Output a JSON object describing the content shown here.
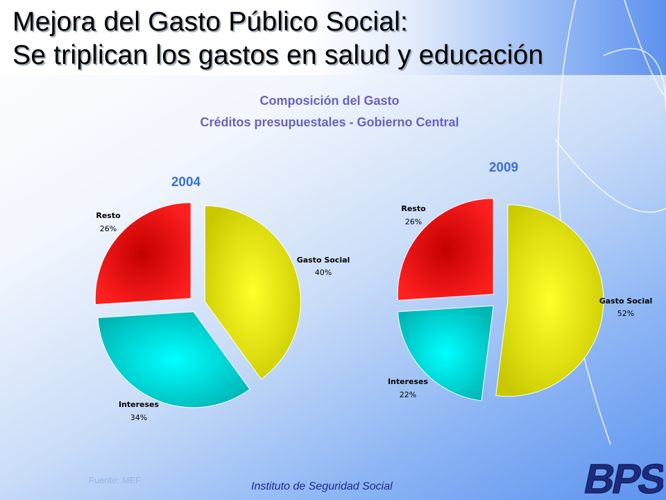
{
  "header": {
    "title_line1": "Mejora del Gasto Público Social:",
    "title_line2": "Se triplican los gastos en salud y educación"
  },
  "chart_heading": {
    "line1": "Composición del Gasto",
    "line2": "Créditos presupuestales - Gobierno Central"
  },
  "chart_data": [
    {
      "type": "pie",
      "title": "2004",
      "categories": [
        "Gasto Social",
        "Intereses",
        "Resto"
      ],
      "values": [
        40,
        34,
        26
      ],
      "value_labels": [
        "40%",
        "34%",
        "26%"
      ],
      "colors": [
        "#e6e600",
        "#00d6d6",
        "#f01818"
      ],
      "exploded": true
    },
    {
      "type": "pie",
      "title": "2009",
      "categories": [
        "Gasto Social",
        "Intereses",
        "Resto"
      ],
      "values": [
        52,
        22,
        26
      ],
      "value_labels": [
        "52%",
        "22%",
        "26%"
      ],
      "colors": [
        "#e6e600",
        "#00d6d6",
        "#f01818"
      ],
      "exploded": true
    }
  ],
  "footer": {
    "source": "Fuente: MEF",
    "institution": "Instituto de Seguridad Social",
    "logo_text": "BPS"
  }
}
